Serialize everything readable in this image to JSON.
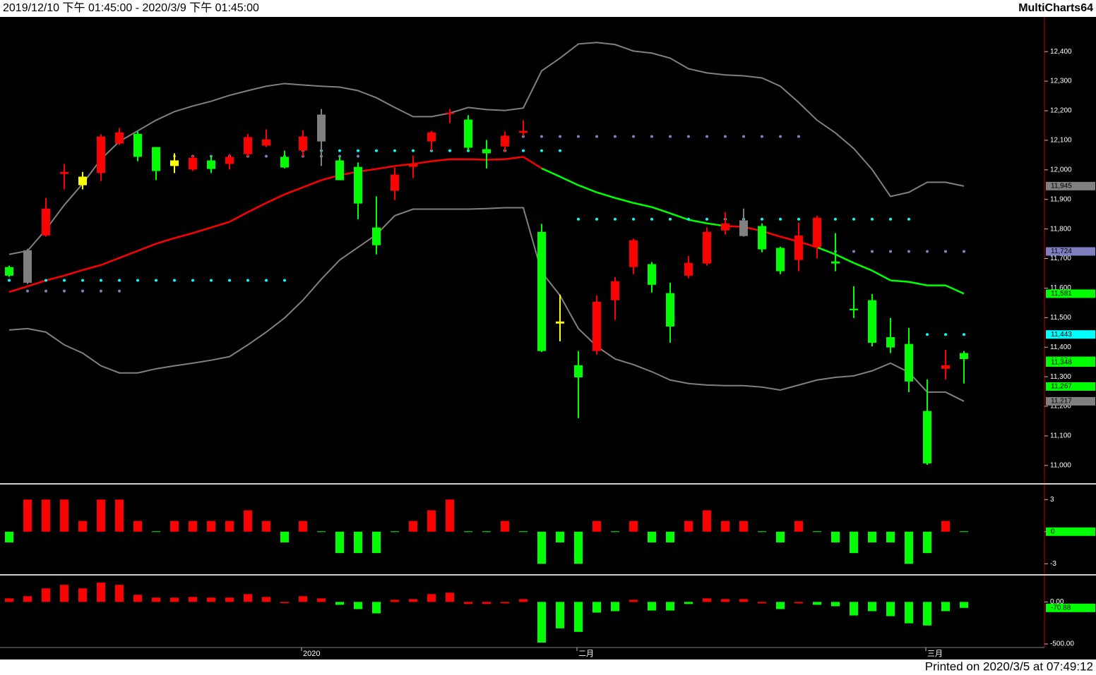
{
  "header": {
    "range": "2019/12/10 下午 01:45:00 - 2020/3/9 下午 01:45:00",
    "app": "MultiCharts64"
  },
  "footer": "Printed on 2020/3/5 at 07:49:12",
  "chart_data": [
    {
      "type": "candlestick",
      "categories": [
        null,
        null,
        null,
        null,
        null,
        null,
        null,
        null,
        null,
        null,
        null,
        null,
        null,
        null,
        null,
        null,
        "2020",
        null,
        null,
        null,
        null,
        null,
        null,
        null,
        null,
        null,
        null,
        null,
        null,
        null,
        null,
        "二月",
        null,
        null,
        null,
        null,
        null,
        null,
        null,
        null,
        null,
        null,
        null,
        null,
        null,
        null,
        null,
        null,
        null,
        null,
        "三月",
        null,
        null
      ],
      "open": [
        11671,
        11728,
        11778,
        11986,
        11977,
        11989,
        12089,
        12122,
        12077,
        12032,
        12001,
        12032,
        12020,
        12053,
        12082,
        12044,
        12065,
        12187,
        12032,
        12010,
        11805,
        11929,
        12010,
        12096,
        12189,
        12170,
        12070,
        12079,
        12125,
        11790,
        11487,
        11339,
        11387,
        11559,
        11671,
        11681,
        11583,
        11642,
        11683,
        11795,
        11829,
        11810,
        11736,
        11695,
        11738,
        11690,
        11530,
        11559,
        11434,
        11411,
        11184,
        11327,
        11380
      ],
      "high": [
        11676,
        11733,
        11905,
        12020,
        11993,
        12120,
        12142,
        12130,
        12077,
        12056,
        12048,
        12046,
        12053,
        12122,
        12137,
        12065,
        12134,
        12206,
        12044,
        12025,
        11910,
        12008,
        12048,
        12132,
        12206,
        12185,
        12101,
        12130,
        12168,
        11817,
        11578,
        11387,
        11575,
        11637,
        11767,
        11688,
        11618,
        11709,
        11805,
        11857,
        11869,
        11819,
        11740,
        11821,
        11845,
        11786,
        11606,
        11580,
        11499,
        11465,
        11291,
        11391,
        11387
      ],
      "low": [
        11638,
        11614,
        11774,
        11934,
        11934,
        11962,
        12084,
        12029,
        11965,
        11989,
        11996,
        11989,
        12001,
        12044,
        12077,
        12005,
        12044,
        12013,
        11965,
        11833,
        11714,
        11898,
        11972,
        12065,
        12158,
        12065,
        12005,
        12060,
        12115,
        11384,
        11420,
        11160,
        11375,
        11492,
        11647,
        11585,
        11415,
        11633,
        11676,
        11781,
        11774,
        11721,
        11647,
        11657,
        11700,
        11657,
        11499,
        11403,
        11380,
        11248,
        11002,
        11291,
        11277
      ],
      "close": [
        11642,
        11618,
        11869,
        11993,
        11948,
        12113,
        12127,
        12044,
        11996,
        12013,
        12041,
        12003,
        12044,
        12111,
        12103,
        12008,
        12113,
        12096,
        11965,
        11886,
        11745,
        11984,
        12020,
        12127,
        12194,
        12075,
        12056,
        12115,
        12132,
        11387,
        11480,
        11298,
        11554,
        11623,
        11762,
        11611,
        11470,
        11685,
        11790,
        11819,
        11776,
        11731,
        11657,
        11778,
        11838,
        11683,
        11525,
        11415,
        11399,
        11284,
        11007,
        11339,
        11360
      ],
      "colors": [
        "#00ff00",
        "#808080",
        "#ff0000",
        "#ff0000",
        "#ffff00",
        "#ff0000",
        "#ff0000",
        "#00ff00",
        "#00ff00",
        "#ffff00",
        "#ff0000",
        "#00ff00",
        "#ff0000",
        "#ff0000",
        "#ff0000",
        "#00ff00",
        "#ff0000",
        "#808080",
        "#00ff00",
        "#00ff00",
        "#00ff00",
        "#ff0000",
        "#ff0000",
        "#ff0000",
        "#ff0000",
        "#00ff00",
        "#00ff00",
        "#ff0000",
        "#ff0000",
        "#00ff00",
        "#ffff00",
        "#00ff00",
        "#ff0000",
        "#ff0000",
        "#ff0000",
        "#00ff00",
        "#00ff00",
        "#ff0000",
        "#ff0000",
        "#ff0000",
        "#808080",
        "#00ff00",
        "#00ff00",
        "#ff0000",
        "#ff0000",
        "#00ff00",
        "#00ff00",
        "#00ff00",
        "#00ff00",
        "#00ff00",
        "#00ff00",
        "#ff0000",
        "#00ff00"
      ],
      "upper_band": {
        "color": "#808080",
        "values": [
          11714,
          11726,
          11798,
          11881,
          11953,
          12036,
          12096,
          12132,
          12168,
          12197,
          12216,
          12232,
          12252,
          12268,
          12283,
          12292,
          12287,
          12283,
          12280,
          12268,
          12244,
          12211,
          12180,
          12180,
          12192,
          12211,
          12204,
          12201,
          12209,
          12335,
          12378,
          12426,
          12431,
          12424,
          12402,
          12395,
          12378,
          12342,
          12328,
          12321,
          12318,
          12311,
          12283,
          12228,
          12168,
          12125,
          12072,
          12001,
          11910,
          11924,
          11958,
          11958,
          11945
        ]
      },
      "lower_band": {
        "color": "#808080",
        "values": [
          11458,
          11463,
          11451,
          11408,
          11380,
          11337,
          11313,
          11313,
          11327,
          11337,
          11346,
          11356,
          11368,
          11408,
          11451,
          11499,
          11559,
          11630,
          11695,
          11738,
          11781,
          11845,
          11867,
          11867,
          11867,
          11867,
          11869,
          11872,
          11872,
          11654,
          11575,
          11463,
          11403,
          11360,
          11341,
          11317,
          11289,
          11277,
          11272,
          11270,
          11270,
          11265,
          11255,
          11272,
          11289,
          11298,
          11303,
          11320,
          11346,
          11315,
          11248,
          11248,
          11217
        ]
      },
      "mid_line": {
        "values": [
          11587,
          11606,
          11626,
          11642,
          11661,
          11678,
          11702,
          11726,
          11750,
          11769,
          11786,
          11805,
          11824,
          11857,
          11888,
          11917,
          11941,
          11965,
          11982,
          11994,
          12003,
          12013,
          12020,
          12029,
          12036,
          12036,
          12034,
          12036,
          12044,
          12005,
          11977,
          11948,
          11924,
          11905,
          11888,
          11874,
          11853,
          11831,
          11819,
          11810,
          11807,
          11793,
          11774,
          11757,
          11738,
          11714,
          11685,
          11659,
          11626,
          11621,
          11609,
          11609,
          11581
        ],
        "colors": [
          "#ff0000",
          "#ff0000",
          "#ff0000",
          "#ff0000",
          "#ff0000",
          "#ff0000",
          "#ff0000",
          "#ff0000",
          "#ff0000",
          "#ff0000",
          "#ff0000",
          "#ff0000",
          "#ff0000",
          "#ff0000",
          "#ff0000",
          "#ff0000",
          "#ff0000",
          "#ff0000",
          "#ff0000",
          "#ff0000",
          "#ff0000",
          "#ff0000",
          "#ff0000",
          "#ff0000",
          "#ff0000",
          "#ff0000",
          "#ff0000",
          "#ff0000",
          "#ff0000",
          "#ff0000",
          "#00ff00",
          "#00ff00",
          "#00ff00",
          "#00ff00",
          "#00ff00",
          "#00ff00",
          "#00ff00",
          "#00ff00",
          "#00ff00",
          "#00ff00",
          "#ff0000",
          "#ff0000",
          "#ff0000",
          "#ff0000",
          "#ff0000",
          "#00ff00",
          "#00ff00",
          "#00ff00",
          "#00ff00",
          "#00ff00",
          "#00ff00",
          "#00ff00",
          "#00ff00"
        ]
      },
      "dots": [
        {
          "color": "#00ffff",
          "values": [
            11626,
            11626,
            11626,
            11626,
            11626,
            11626,
            11626,
            11626,
            11626,
            11626,
            11626,
            11626,
            11626,
            11626,
            11626,
            11626,
            12065,
            12065,
            12065,
            12065,
            12065,
            12065,
            12065,
            12065,
            12065,
            12065,
            12065,
            12065,
            12065,
            12065,
            12065,
            11833,
            11833,
            11833,
            11833,
            11833,
            11833,
            11833,
            11833,
            11833,
            11833,
            11833,
            11833,
            11833,
            11833,
            11833,
            11833,
            11833,
            11833,
            11833,
            11443,
            11443,
            11443
          ]
        },
        {
          "color": "#8080c0",
          "values": [
            null,
            11590,
            11590,
            11590,
            11590,
            11590,
            11590,
            null,
            null,
            12046,
            12046,
            12046,
            12046,
            12046,
            12046,
            12046,
            12046,
            12046,
            12046,
            12046,
            null,
            null,
            null,
            null,
            null,
            null,
            null,
            12113,
            12113,
            12113,
            12113,
            12113,
            12113,
            12113,
            12113,
            12113,
            12113,
            12113,
            12113,
            12113,
            12113,
            12113,
            12113,
            12113,
            null,
            11724,
            11724,
            11724,
            11724,
            11724,
            11724,
            11724,
            11724
          ]
        }
      ],
      "last_labels": [
        {
          "value": 11945,
          "label": "11,945",
          "color": "#808080"
        },
        {
          "value": 11724,
          "label": "11,724",
          "color": "#8080c0"
        },
        {
          "value": 11581,
          "label": "11,581",
          "color": "#00ff00"
        },
        {
          "value": 11443,
          "label": "11,443",
          "color": "#00ffff"
        },
        {
          "value": 11354,
          "label": "11,354",
          "color": "#00ff00"
        },
        {
          "value": 11348,
          "label": "11,348",
          "color": "#00ff00"
        },
        {
          "value": 11267,
          "label": "11,267",
          "color": "#00ff00"
        },
        {
          "value": 11217,
          "label": "11,217",
          "color": "#808080"
        }
      ],
      "ylim": [
        10940,
        12515
      ],
      "yticks": [
        {
          "value": 11000,
          "label": "11,000"
        },
        {
          "value": 11100,
          "label": "11,100"
        },
        {
          "value": 11200,
          "label": "11,200"
        },
        {
          "value": 11300,
          "label": "11,300"
        },
        {
          "value": 11400,
          "label": "11,400"
        },
        {
          "value": 11500,
          "label": "11,500"
        },
        {
          "value": 11600,
          "label": "11,600"
        },
        {
          "value": 11700,
          "label": "11,700"
        },
        {
          "value": 11800,
          "label": "11,800"
        },
        {
          "value": 11900,
          "label": "11,900"
        },
        {
          "value": 12000,
          "label": "12,000"
        },
        {
          "value": 12100,
          "label": "12,100"
        },
        {
          "value": 12200,
          "label": "12,200"
        },
        {
          "value": 12300,
          "label": "12,300"
        },
        {
          "value": 12400,
          "label": "12,400"
        }
      ]
    },
    {
      "type": "bar",
      "up_color": "#ff0000",
      "down_color": "#00ff00",
      "values": [
        -1,
        3,
        3,
        3,
        1,
        3,
        3,
        1,
        0,
        1,
        1,
        1,
        1,
        2,
        1,
        -1,
        1,
        0,
        -2,
        -2,
        -2,
        0,
        1,
        2,
        3,
        0,
        0,
        1,
        0,
        -3,
        -1,
        -3,
        1,
        0,
        1,
        -1,
        -1,
        1,
        2,
        1,
        1,
        0,
        -1,
        1,
        0,
        -1,
        -2,
        -1,
        -1,
        -3,
        -2,
        1,
        0
      ],
      "last_labels": [
        {
          "value": 0,
          "label": "0",
          "color": "#00ff00"
        }
      ],
      "ylim": [
        -3.9,
        4.4
      ],
      "yticks": [
        3,
        0,
        -3
      ]
    },
    {
      "type": "bar",
      "values": [
        42,
        68,
        161,
        203,
        161,
        229,
        203,
        85,
        51,
        51,
        59,
        51,
        51,
        93,
        59,
        -15,
        68,
        42,
        -34,
        -85,
        -136,
        25,
        34,
        93,
        110,
        -25,
        -25,
        -17,
        34,
        -483,
        -314,
        -356,
        -127,
        -110,
        25,
        -102,
        -102,
        -25,
        42,
        34,
        34,
        -17,
        -85,
        -17,
        -34,
        -51,
        -161,
        -110,
        -169,
        -254,
        -280,
        -110,
        -70.88
      ],
      "colors": [
        "#ff0000",
        "#ff0000",
        "#ff0000",
        "#ff0000",
        "#ff0000",
        "#ff0000",
        "#ff0000",
        "#ff0000",
        "#ff0000",
        "#ff0000",
        "#ff0000",
        "#ff0000",
        "#ff0000",
        "#ff0000",
        "#ff0000",
        "#ff0000",
        "#ff0000",
        "#ff0000",
        "#00ff00",
        "#00ff00",
        "#00ff00",
        "#ff0000",
        "#ff0000",
        "#ff0000",
        "#ff0000",
        "#ff0000",
        "#ff0000",
        "#ff0000",
        "#ff0000",
        "#00ff00",
        "#00ff00",
        "#00ff00",
        "#00ff00",
        "#00ff00",
        "#ff0000",
        "#00ff00",
        "#00ff00",
        "#00ff00",
        "#ff0000",
        "#ff0000",
        "#ff0000",
        "#ff0000",
        "#00ff00",
        "#ff0000",
        "#00ff00",
        "#00ff00",
        "#00ff00",
        "#00ff00",
        "#00ff00",
        "#00ff00",
        "#00ff00",
        "#00ff00",
        "#00ff00"
      ],
      "last_labels": [
        {
          "value": -70.88,
          "label": "-70.88",
          "color": "#00ff00"
        }
      ],
      "ylim": [
        -525,
        305
      ],
      "yticks": [
        {
          "value": 0,
          "label": "0.00"
        },
        {
          "value": -500,
          "label": "-500.00"
        }
      ]
    }
  ]
}
